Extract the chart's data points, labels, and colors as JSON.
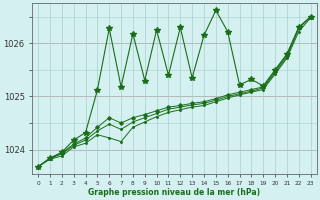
{
  "x": [
    0,
    1,
    2,
    3,
    4,
    5,
    6,
    7,
    8,
    9,
    10,
    11,
    12,
    13,
    14,
    15,
    16,
    17,
    18,
    19,
    20,
    21,
    22,
    23
  ],
  "y_base": [
    1023.68,
    1023.82,
    1023.88,
    1024.05,
    1024.12,
    1024.28,
    1024.22,
    1024.15,
    1024.42,
    1024.52,
    1024.62,
    1024.7,
    1024.75,
    1024.8,
    1024.83,
    1024.9,
    1024.97,
    1025.03,
    1025.08,
    1025.13,
    1025.42,
    1025.72,
    1026.22,
    1026.48
  ],
  "y_trend": [
    1023.68,
    1023.83,
    1023.92,
    1024.08,
    1024.18,
    1024.35,
    1024.48,
    1024.38,
    1024.52,
    1024.6,
    1024.68,
    1024.76,
    1024.8,
    1024.84,
    1024.87,
    1024.93,
    1025.0,
    1025.05,
    1025.1,
    1025.16,
    1025.45,
    1025.75,
    1026.28,
    1026.5
  ],
  "y_smooth": [
    1023.68,
    1023.84,
    1023.94,
    1024.1,
    1024.22,
    1024.42,
    1024.6,
    1024.5,
    1024.6,
    1024.66,
    1024.73,
    1024.8,
    1024.83,
    1024.87,
    1024.9,
    1024.96,
    1025.03,
    1025.08,
    1025.13,
    1025.18,
    1025.48,
    1025.78,
    1026.3,
    1026.5
  ],
  "y_spiky": [
    1023.68,
    1023.84,
    1023.95,
    1024.18,
    1024.32,
    1025.12,
    1026.28,
    1025.18,
    1026.18,
    1025.3,
    1026.25,
    1025.4,
    1026.3,
    1025.35,
    1026.15,
    1026.62,
    1026.22,
    1025.22,
    1025.32,
    1025.2,
    1025.5,
    1025.8,
    1026.3,
    1026.5
  ],
  "ylim": [
    1023.55,
    1026.75
  ],
  "yticks": [
    1024,
    1025,
    1026
  ],
  "xticks": [
    0,
    1,
    2,
    3,
    4,
    5,
    6,
    7,
    8,
    9,
    10,
    11,
    12,
    13,
    14,
    15,
    16,
    17,
    18,
    19,
    20,
    21,
    22,
    23
  ],
  "xlabel": "Graphe pression niveau de la mer (hPa)",
  "line_color": "#1a6e1a",
  "bg_color": "#d4f0f0",
  "grid_color": "#aacece",
  "hline_color": "#c09090"
}
